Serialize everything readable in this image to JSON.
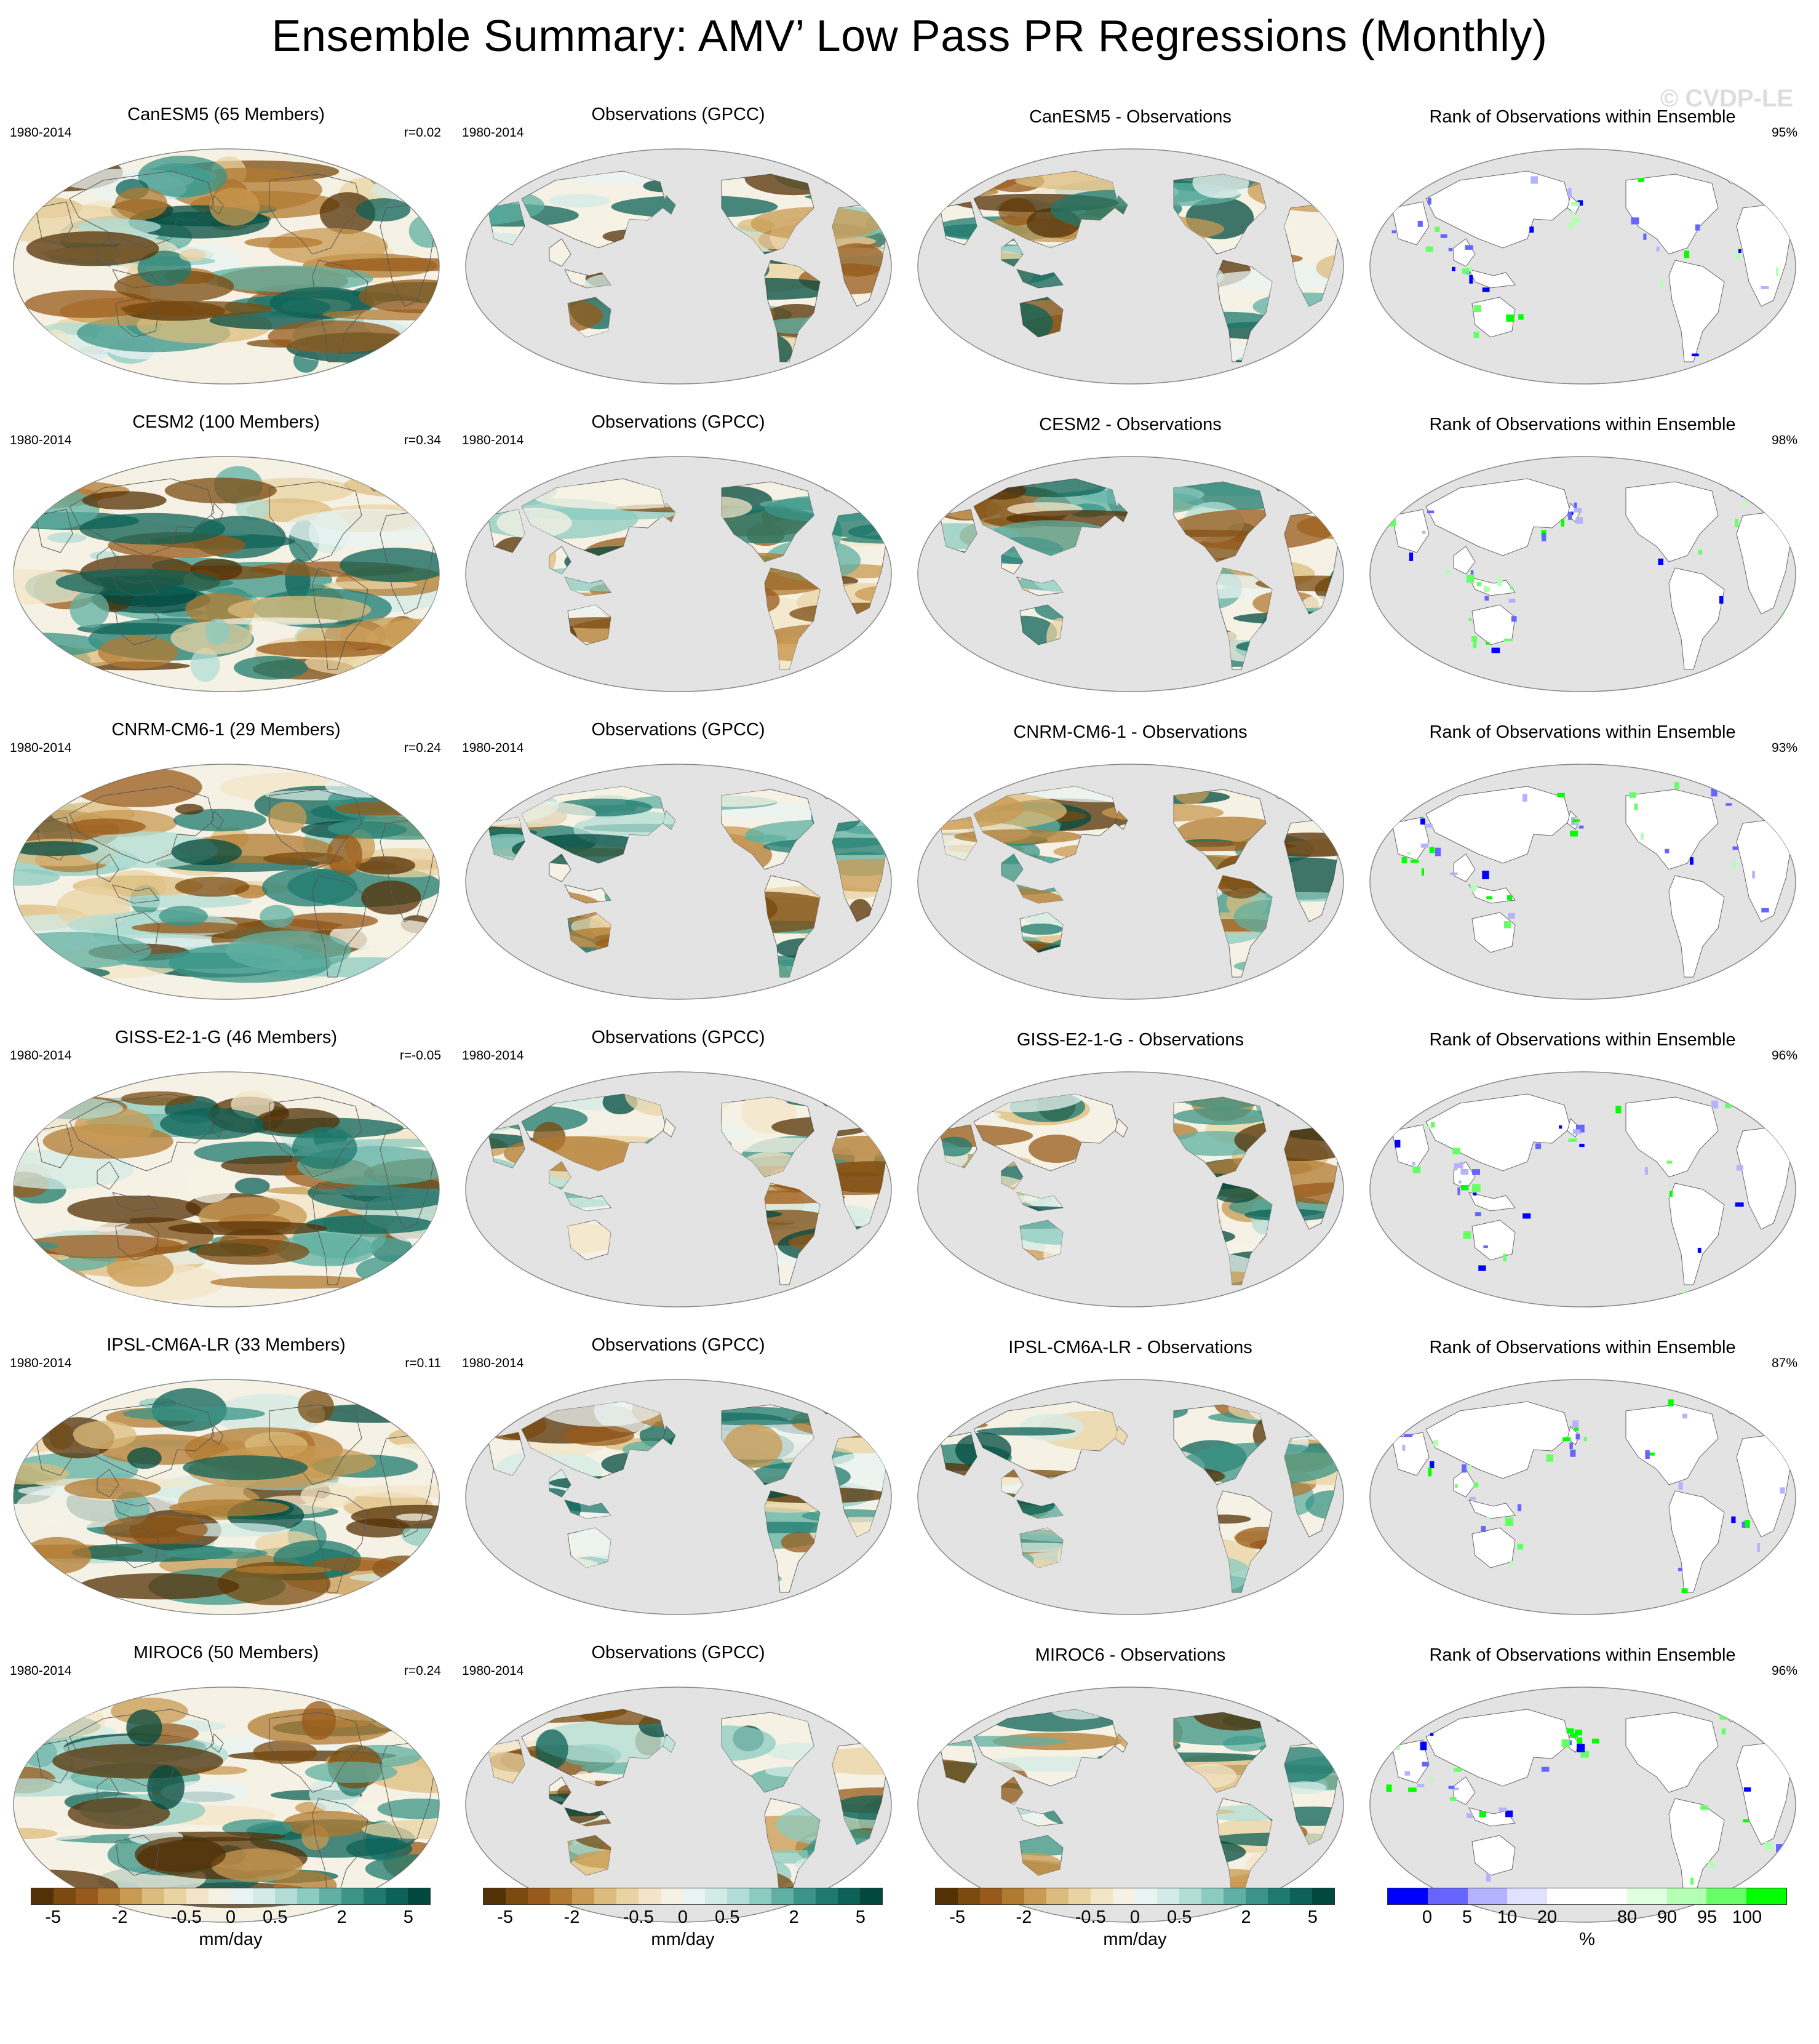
{
  "title": "Ensemble Summary: AMV’ Low Pass PR Regressions (Monthly)",
  "watermark": "© CVDP-LE",
  "period": "1980-2014",
  "obs_title": "Observations (GPCC)",
  "rank_title": "Rank of Observations within Ensemble",
  "rows": [
    {
      "model_title": "CanESM5 (65 Members)",
      "r": "r=0.02",
      "diff_title": "CanESM5 - Observations",
      "rank_pct": "95%"
    },
    {
      "model_title": "CESM2 (100 Members)",
      "r": "r=0.34",
      "diff_title": "CESM2 - Observations",
      "rank_pct": "98%"
    },
    {
      "model_title": "CNRM-CM6-1 (29 Members)",
      "r": "r=0.24",
      "diff_title": "CNRM-CM6-1 - Observations",
      "rank_pct": "93%"
    },
    {
      "model_title": "GISS-E2-1-G (46 Members)",
      "r": "r=-0.05",
      "diff_title": "GISS-E2-1-G - Observations",
      "rank_pct": "96%"
    },
    {
      "model_title": "IPSL-CM6A-LR (33 Members)",
      "r": "r=0.11",
      "diff_title": "IPSL-CM6A-LR - Observations",
      "rank_pct": "87%"
    },
    {
      "model_title": "MIROC6 (50 Members)",
      "r": "r=0.24",
      "diff_title": "MIROC6 - Observations",
      "rank_pct": "96%"
    }
  ],
  "colorbars": {
    "pr": {
      "unit": "mm/day",
      "ticks": [
        "-5",
        "-2",
        "-0.5",
        "0",
        "0.5",
        "2",
        "5"
      ],
      "colors": [
        "#543005",
        "#7a4a0f",
        "#98591a",
        "#b27a30",
        "#c99a52",
        "#dcbc7c",
        "#ead3a3",
        "#f3e6c8",
        "#f5f1e4",
        "#e9f3f1",
        "#d3ebe7",
        "#b2ddd6",
        "#8ccbc0",
        "#5fb0a3",
        "#3a9487",
        "#1e7a6e",
        "#0c6257",
        "#01493f"
      ]
    },
    "rank": {
      "unit": "%",
      "ticks": [
        "0",
        "5",
        "10",
        "20",
        "80",
        "90",
        "95",
        "100"
      ],
      "colors": [
        "#0000ff",
        "#6666ff",
        "#b3b3ff",
        "#e0e0ff",
        "#ffffff",
        "#ffffff",
        "#e0ffe0",
        "#b3ffb3",
        "#66ff66",
        "#00ff00"
      ]
    }
  }
}
